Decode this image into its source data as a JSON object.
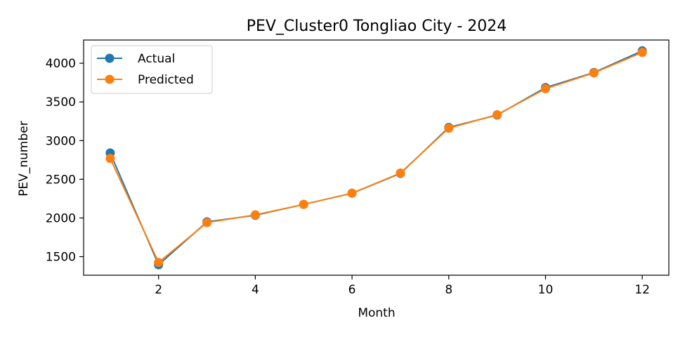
{
  "chart_data": {
    "type": "line",
    "title": "PEV_Cluster0 Tongliao City - 2024",
    "xlabel": "Month",
    "ylabel": "PEV_number",
    "x": [
      1,
      2,
      3,
      4,
      5,
      6,
      7,
      8,
      9,
      10,
      11,
      12
    ],
    "xlim": [
      0.45,
      12.55
    ],
    "ylim": [
      1260,
      4300
    ],
    "xticks": [
      2,
      4,
      6,
      8,
      10,
      12
    ],
    "yticks": [
      1500,
      2000,
      2500,
      3000,
      3500,
      4000
    ],
    "grid": false,
    "legend_position": "top-left",
    "series": [
      {
        "name": "Actual",
        "color": "#1f77b4",
        "values": [
          2840,
          1395,
          1950,
          2035,
          2175,
          2320,
          2575,
          3170,
          3330,
          3685,
          3880,
          4160
        ]
      },
      {
        "name": "Predicted",
        "color": "#ff7f0e",
        "values": [
          2770,
          1425,
          1940,
          2040,
          2175,
          2320,
          2580,
          3160,
          3335,
          3670,
          3875,
          4140
        ]
      }
    ]
  }
}
